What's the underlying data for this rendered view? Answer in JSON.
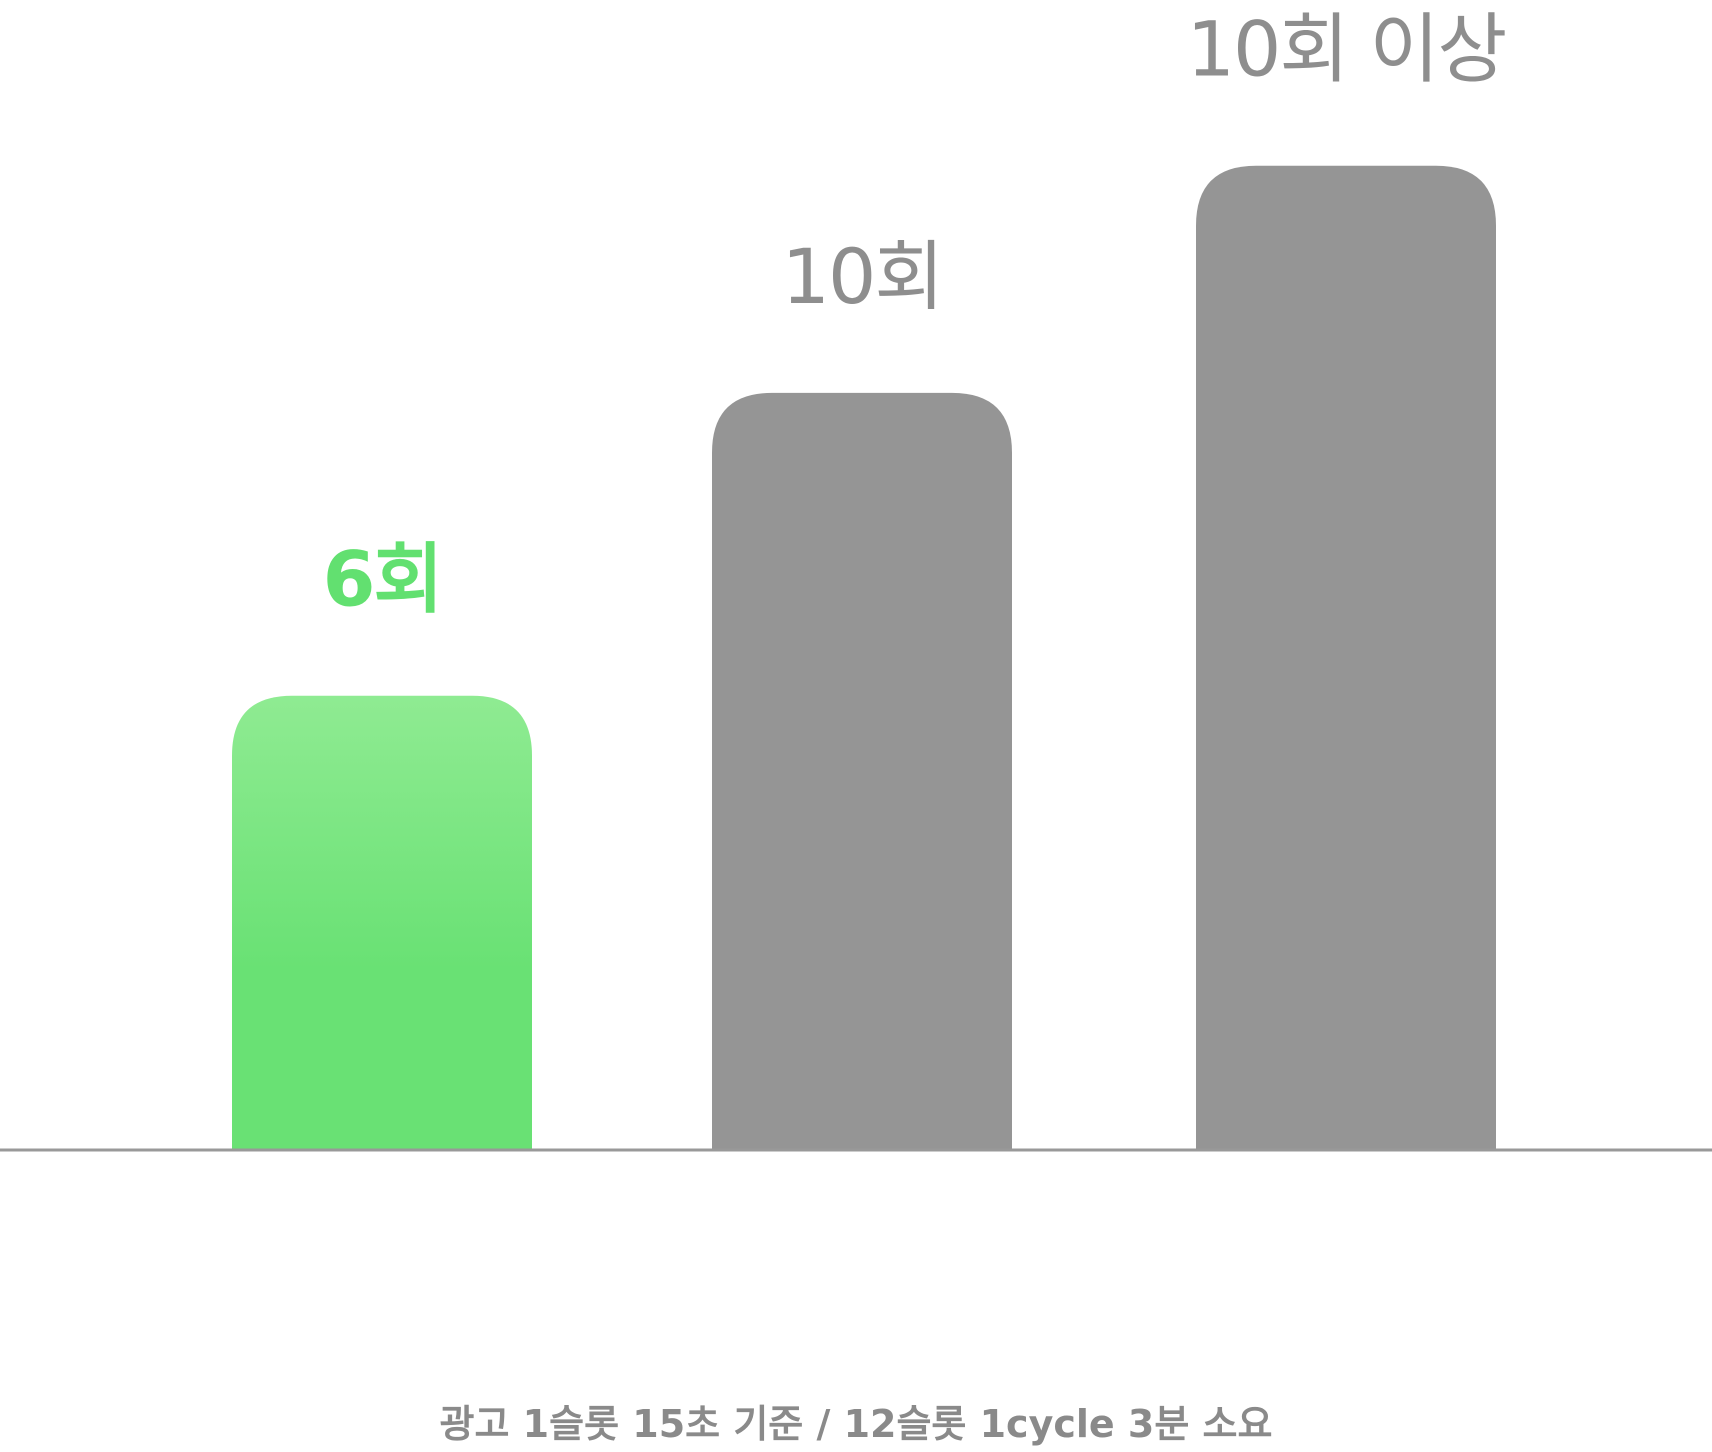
{
  "chart_data": {
    "type": "bar",
    "categories": [
      "",
      "",
      ""
    ],
    "values": [
      6,
      10,
      13
    ],
    "data_labels": [
      "6회",
      "10회",
      "10회 이상"
    ],
    "highlight_index": 0,
    "title": "",
    "xlabel": "",
    "ylabel": "",
    "ylim": [
      0,
      14
    ],
    "grid": false,
    "legend": "none",
    "footnote": "광고 1슬롯 15초 기준 / 12슬롯 1cycle 3분 소요"
  },
  "colors": {
    "highlight_top": "#8FEB92",
    "highlight_bottom": "#69E174",
    "highlight_label": "#62E070",
    "bar": "#959595",
    "label": "#8E8E8E",
    "baseline": "#999999",
    "footnote": "#8A8A8A"
  }
}
